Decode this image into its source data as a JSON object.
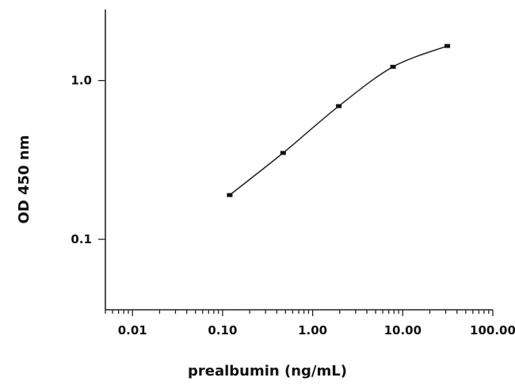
{
  "chart_data": {
    "type": "line",
    "xlabel": "prealbumin (ng/mL)",
    "ylabel": "OD 450 nm",
    "x_scale": "log",
    "y_scale": "log",
    "xlim": [
      0.005,
      100
    ],
    "ylim": [
      0.036,
      2.8
    ],
    "x_ticks": [
      {
        "value": 0.01,
        "label": "0.01"
      },
      {
        "value": 0.1,
        "label": "0.10"
      },
      {
        "value": 1,
        "label": "1.00"
      },
      {
        "value": 10,
        "label": "10.00"
      },
      {
        "value": 100,
        "label": "100.00"
      }
    ],
    "y_ticks": [
      {
        "value": 0.1,
        "label": "0.1"
      },
      {
        "value": 1,
        "label": "1.0"
      }
    ],
    "grid": false,
    "series": [
      {
        "x": [
          0.12,
          0.47,
          1.95,
          7.8,
          31.25
        ],
        "y": [
          0.19,
          0.35,
          0.69,
          1.22,
          1.65
        ]
      }
    ]
  }
}
